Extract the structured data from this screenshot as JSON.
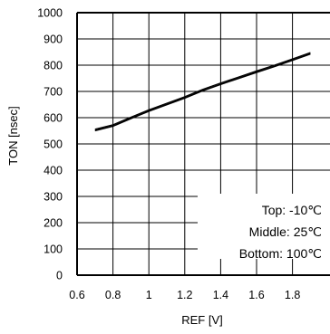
{
  "chart_data": {
    "type": "line",
    "title": "",
    "xlabel": "REF [V]",
    "ylabel": "TON [nsec]",
    "xlim": [
      0.6,
      1.9
    ],
    "ylim": [
      0,
      1000
    ],
    "x_ticks": [
      "0.6",
      "0.8",
      "1",
      "1.2",
      "1.4",
      "1.6",
      "1.8"
    ],
    "y_ticks": [
      "0",
      "100",
      "200",
      "300",
      "400",
      "500",
      "600",
      "700",
      "800",
      "900",
      "1000"
    ],
    "grid": true,
    "legend_position": "bottom-right",
    "annotations": [
      "Top: -10℃",
      "Middle: 25℃",
      "Bottom: 100℃"
    ],
    "series": [
      {
        "x": [
          0.7,
          0.8,
          0.9,
          1.0,
          1.1,
          1.2,
          1.3,
          1.4,
          1.5,
          1.6,
          1.7,
          1.8,
          1.9
        ],
        "y": [
          556,
          573,
          602,
          630,
          655,
          680,
          708,
          732,
          755,
          778,
          800,
          824,
          848
        ]
      },
      {
        "x": [
          0.7,
          0.8,
          0.9,
          1.0,
          1.1,
          1.2,
          1.3,
          1.4,
          1.5,
          1.6,
          1.7,
          1.8,
          1.9
        ],
        "y": [
          552,
          569,
          598,
          626,
          651,
          676,
          704,
          728,
          751,
          774,
          796,
          820,
          844
        ]
      },
      {
        "x": [
          0.7,
          0.8,
          0.9,
          1.0,
          1.1,
          1.2,
          1.3,
          1.4,
          1.5,
          1.6,
          1.7,
          1.8,
          1.9
        ],
        "y": [
          550,
          567,
          596,
          624,
          649,
          674,
          702,
          726,
          749,
          772,
          794,
          818,
          842
        ]
      }
    ],
    "colors": {
      "line": "#000000",
      "grid": "#000000",
      "background": "#ffffff"
    }
  }
}
